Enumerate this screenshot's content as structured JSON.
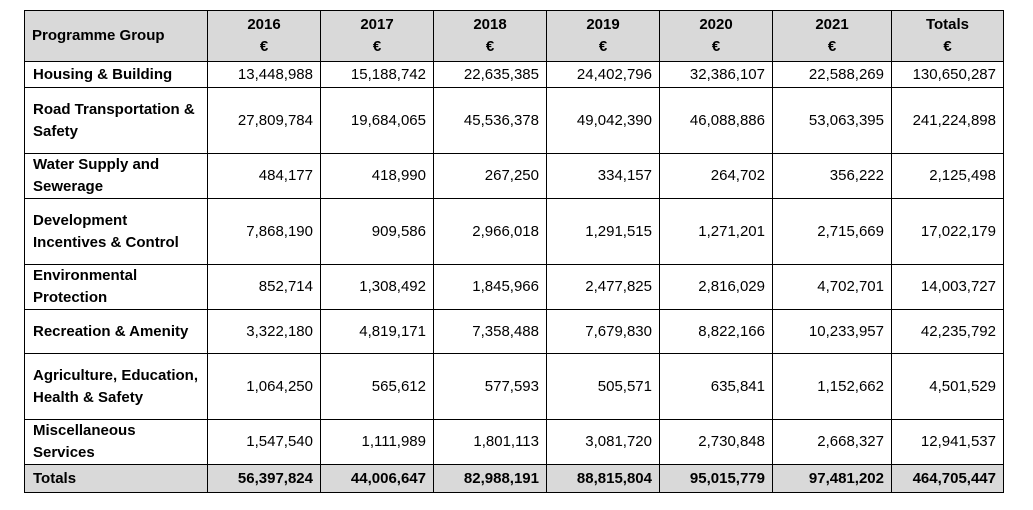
{
  "table": {
    "header": {
      "group_label": "Programme Group",
      "currency": "€",
      "years": [
        "2016",
        "2017",
        "2018",
        "2019",
        "2020",
        "2021"
      ],
      "totals_label": "Totals"
    },
    "rows": [
      {
        "group": "Housing & Building",
        "values": [
          "13,448,988",
          "15,188,742",
          "22,635,385",
          "24,402,796",
          "32,386,107",
          "22,588,269"
        ],
        "total": "130,650,287"
      },
      {
        "group": "Road Transportation & Safety",
        "values": [
          "27,809,784",
          "19,684,065",
          "45,536,378",
          "49,042,390",
          "46,088,886",
          "53,063,395"
        ],
        "total": "241,224,898"
      },
      {
        "group": "Water Supply and Sewerage",
        "values": [
          "484,177",
          "418,990",
          "267,250",
          "334,157",
          "264,702",
          "356,222"
        ],
        "total": "2,125,498"
      },
      {
        "group": "Development Incentives & Control",
        "values": [
          "7,868,190",
          "909,586",
          "2,966,018",
          "1,291,515",
          "1,271,201",
          "2,715,669"
        ],
        "total": "17,022,179"
      },
      {
        "group": "Environmental Protection",
        "values": [
          "852,714",
          "1,308,492",
          "1,845,966",
          "2,477,825",
          "2,816,029",
          "4,702,701"
        ],
        "total": "14,003,727"
      },
      {
        "group": "Recreation & Amenity",
        "values": [
          "3,322,180",
          "4,819,171",
          "7,358,488",
          "7,679,830",
          "8,822,166",
          "10,233,957"
        ],
        "total": "42,235,792"
      },
      {
        "group": "Agriculture, Education, Health & Safety",
        "values": [
          "1,064,250",
          "565,612",
          "577,593",
          "505,571",
          "635,841",
          "1,152,662"
        ],
        "total": "4,501,529"
      },
      {
        "group": "Miscellaneous Services",
        "values": [
          "1,547,540",
          "1,111,989",
          "1,801,113",
          "3,081,720",
          "2,730,848",
          "2,668,327"
        ],
        "total": "12,941,537"
      }
    ],
    "footer": {
      "label": "Totals",
      "values": [
        "56,397,824",
        "44,006,647",
        "82,988,191",
        "88,815,804",
        "95,015,779",
        "97,481,202"
      ],
      "total": "464,705,447"
    }
  }
}
